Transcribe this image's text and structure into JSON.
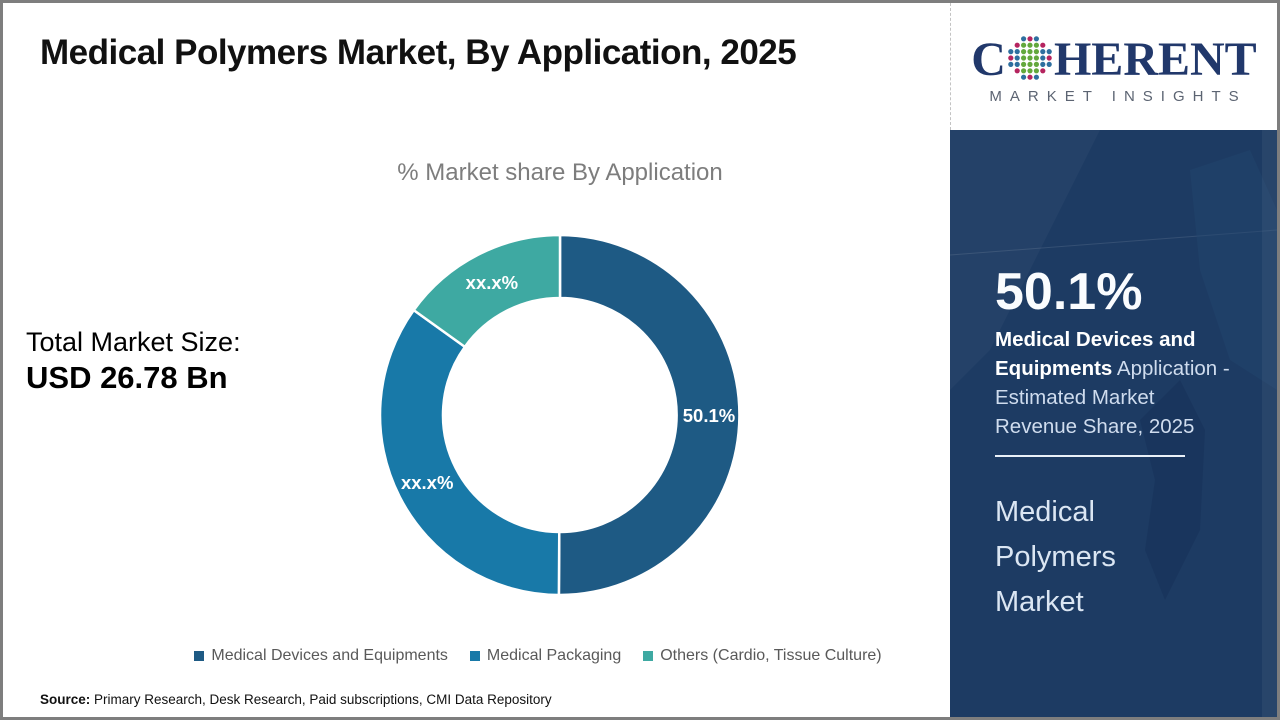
{
  "slide": {
    "title": "Medical Polymers Market, By Application, 2025",
    "source_label": "Source:",
    "source_text": " Primary Research, Desk Research, Paid subscriptions, CMI Data Repository"
  },
  "logo": {
    "brand_prefix": "C",
    "brand_suffix": "HERENT",
    "subtitle": "MARKET INSIGHTS",
    "brand_color": "#21386b",
    "subtitle_color": "#5c6472",
    "dot_colors": {
      "green": "#63a83c",
      "blue": "#2e6f9f",
      "crimson": "#b5245f"
    }
  },
  "total_market": {
    "label": "Total Market Size:",
    "value": "USD 26.78 Bn"
  },
  "chart_data": {
    "type": "pie",
    "subtype": "donut",
    "title": "% Market share By Application",
    "start_angle_deg": 0,
    "direction": "clockwise",
    "inner_radius_ratio": 0.65,
    "legend_position": "bottom",
    "segments": [
      {
        "label": "Medical Devices and Equipments",
        "display": "50.1%",
        "value": 50.1,
        "color": "#1e5a84"
      },
      {
        "label": "Medical Packaging",
        "display": "xx.x%",
        "value": 34.8,
        "color": "#1879a8"
      },
      {
        "label": "Others (Cardio, Tissue Culture)",
        "display": "xx.x%",
        "value": 15.1,
        "color": "#3ea9a2"
      }
    ]
  },
  "sidebar": {
    "background": "#1d3b63",
    "stat_value": "50.1%",
    "highlight_lines": [
      {
        "bold": "Medical Devices and",
        "regular": ""
      },
      {
        "bold": "Equipments",
        "regular": " Application -"
      },
      {
        "bold": "",
        "regular": "Estimated Market"
      },
      {
        "bold": "",
        "regular": "Revenue Share, 2025"
      }
    ],
    "market_name": "Medical Polymers Market"
  }
}
